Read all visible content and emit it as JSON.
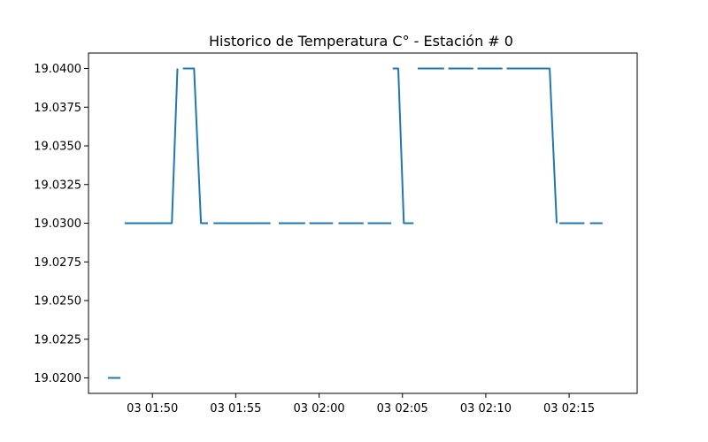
{
  "chart_data": {
    "type": "line",
    "title": "Historico de Temperatura C° - Estación # 0",
    "xlabel": "",
    "ylabel": "",
    "x_axis_type": "time",
    "x_reference_date": "03",
    "xlim": [
      "01:46:10",
      "02:19:05"
    ],
    "ylim": [
      19.019,
      19.041
    ],
    "grid": false,
    "line_color": "#1f77b4",
    "x_ticks": [
      "01:50",
      "01:55",
      "02:00",
      "02:05",
      "02:10",
      "02:15"
    ],
    "x_tick_labels": [
      "03 01:50",
      "03 01:55",
      "03 02:00",
      "03 02:05",
      "03 02:10",
      "03 02:15"
    ],
    "y_ticks": [
      19.02,
      19.0225,
      19.025,
      19.0275,
      19.03,
      19.0325,
      19.035,
      19.0375,
      19.04
    ],
    "y_tick_labels": [
      "19.0200",
      "19.0225",
      "19.0250",
      "19.0275",
      "19.0300",
      "19.0325",
      "19.0350",
      "19.0375",
      "19.0400"
    ],
    "segments": [
      {
        "x": [
          "01:47:20",
          "01:48:05"
        ],
        "y": [
          19.02,
          19.02
        ]
      },
      {
        "x": [
          "01:48:20",
          "01:51:10",
          "01:51:30"
        ],
        "y": [
          19.03,
          19.03,
          19.04
        ]
      },
      {
        "x": [
          "01:51:50",
          "01:52:30",
          "01:52:55",
          "01:53:20"
        ],
        "y": [
          19.04,
          19.04,
          19.03,
          19.03
        ]
      },
      {
        "x": [
          "01:53:40",
          "01:57:05"
        ],
        "y": [
          19.03,
          19.03
        ]
      },
      {
        "x": [
          "01:57:35",
          "01:59:10"
        ],
        "y": [
          19.03,
          19.03
        ]
      },
      {
        "x": [
          "01:59:25",
          "02:00:50"
        ],
        "y": [
          19.03,
          19.03
        ]
      },
      {
        "x": [
          "02:01:10",
          "02:02:40"
        ],
        "y": [
          19.03,
          19.03
        ]
      },
      {
        "x": [
          "02:02:55",
          "02:04:20"
        ],
        "y": [
          19.03,
          19.03
        ]
      },
      {
        "x": [
          "02:04:25",
          "02:04:45",
          "02:05:05",
          "02:05:40"
        ],
        "y": [
          19.04,
          19.04,
          19.03,
          19.03
        ]
      },
      {
        "x": [
          "02:05:55",
          "02:07:30"
        ],
        "y": [
          19.04,
          19.04
        ]
      },
      {
        "x": [
          "02:07:45",
          "02:09:15"
        ],
        "y": [
          19.04,
          19.04
        ]
      },
      {
        "x": [
          "02:09:30",
          "02:11:00"
        ],
        "y": [
          19.04,
          19.04
        ]
      },
      {
        "x": [
          "02:11:15",
          "02:13:50",
          "02:14:15"
        ],
        "y": [
          19.04,
          19.04,
          19.03
        ]
      },
      {
        "x": [
          "02:14:25",
          "02:15:55"
        ],
        "y": [
          19.03,
          19.03
        ]
      },
      {
        "x": [
          "02:16:15",
          "02:17:00"
        ],
        "y": [
          19.03,
          19.03
        ]
      }
    ]
  }
}
